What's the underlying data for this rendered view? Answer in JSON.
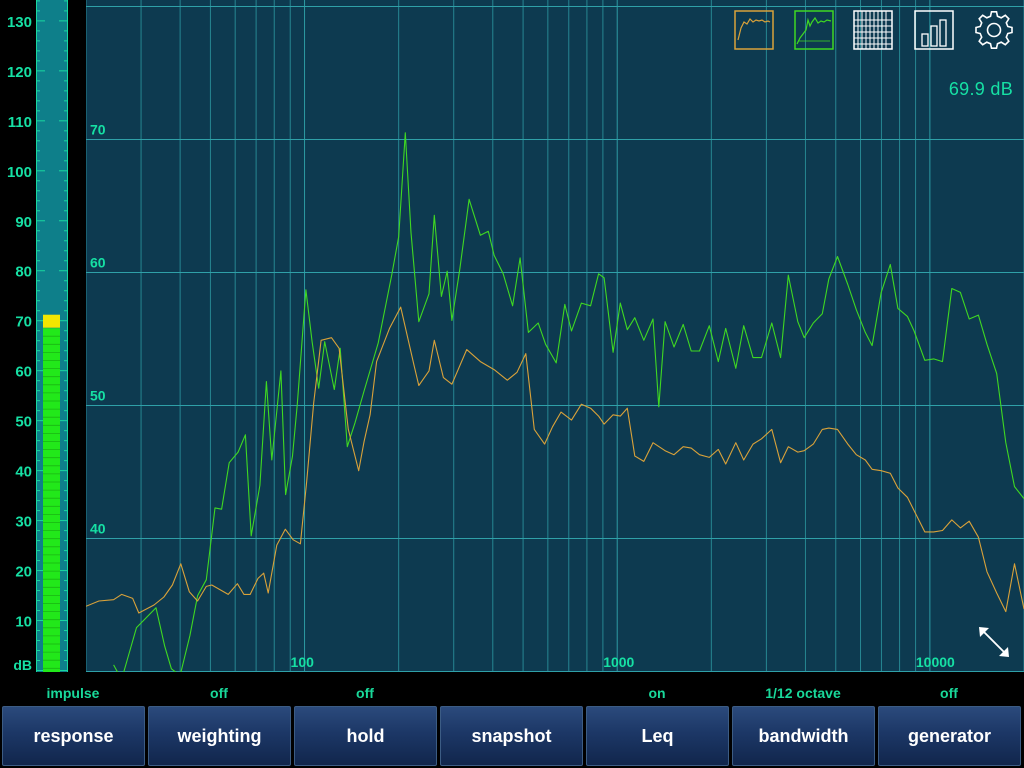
{
  "meter": {
    "ticks": [
      "130",
      "120",
      "110",
      "100",
      "90",
      "80",
      "70",
      "60",
      "50",
      "40",
      "30",
      "20",
      "10"
    ],
    "unit_label": "dB",
    "level_db": 68.5,
    "peak_db": 70,
    "range_db": [
      0,
      135
    ]
  },
  "readout": {
    "level_text": "69.9 dB"
  },
  "toolbar": {
    "icons": [
      "line-spectrum-icon",
      "filled-spectrum-icon",
      "spectrogram-icon",
      "bar-chart-icon",
      "settings-gear-icon"
    ]
  },
  "status": {
    "response": "impulse",
    "weighting": "off",
    "hold": "off",
    "snapshot": "",
    "leq": "on",
    "bandwidth": "1/12 octave",
    "generator": "off"
  },
  "buttons": {
    "response": "response",
    "weighting": "weighting",
    "hold": "hold",
    "snapshot": "snapshot",
    "leq": "Leq",
    "bandwidth": "bandwidth",
    "generator": "generator"
  },
  "colors": {
    "plot_bg": "#0d3a50",
    "grid": "#2fa0a8",
    "label": "#16e0a4",
    "green_trace": "#3fd822",
    "orange_trace": "#d9a23a",
    "meter_bar": "#22e81a",
    "meter_peak": "#f2e600"
  },
  "chart_data": {
    "type": "line",
    "x_scale": "log",
    "xlim": [
      20,
      20000
    ],
    "ylim": [
      30,
      80
    ],
    "x_tick_labels": [
      "100",
      "1000",
      "10000"
    ],
    "y_tick_labels": [
      "40",
      "50",
      "60",
      "70"
    ],
    "series": [
      {
        "color": "#3fd822",
        "points": [
          [
            24.5,
            30.5
          ],
          [
            26,
            29.4
          ],
          [
            29,
            33.3
          ],
          [
            33.5,
            34.8
          ],
          [
            35.7,
            31.9
          ],
          [
            37.5,
            30.2
          ],
          [
            40,
            29.7
          ],
          [
            43,
            32.7
          ],
          [
            45.5,
            35.7
          ],
          [
            48.5,
            36.9
          ],
          [
            51.7,
            42.3
          ],
          [
            54.3,
            42.2
          ],
          [
            57.4,
            45.7
          ],
          [
            61.3,
            46.5
          ],
          [
            64.7,
            47.8
          ],
          [
            67.5,
            40.2
          ],
          [
            72,
            44
          ],
          [
            75.5,
            51.8
          ],
          [
            78.6,
            45.9
          ],
          [
            84,
            52.6
          ],
          [
            87,
            43.3
          ],
          [
            91.5,
            46.2
          ],
          [
            94.8,
            50.1
          ],
          [
            101,
            58.7
          ],
          [
            105.7,
            54.8
          ],
          [
            111,
            51.3
          ],
          [
            116,
            54.8
          ],
          [
            124.5,
            51.2
          ],
          [
            130,
            54.3
          ],
          [
            137,
            46.9
          ],
          [
            145,
            48.7
          ],
          [
            155,
            51.1
          ],
          [
            172,
            54.7
          ],
          [
            190,
            59.8
          ],
          [
            200,
            62.7
          ],
          [
            210,
            70.5
          ],
          [
            219,
            63
          ],
          [
            232,
            56.3
          ],
          [
            250,
            58.4
          ],
          [
            260,
            64.3
          ],
          [
            274,
            58.2
          ],
          [
            286,
            60.1
          ],
          [
            296,
            56.4
          ],
          [
            314,
            60.3
          ],
          [
            336,
            65.5
          ],
          [
            365,
            62.8
          ],
          [
            387,
            63.1
          ],
          [
            404,
            61.3
          ],
          [
            432,
            59.9
          ],
          [
            463,
            57.5
          ],
          [
            489,
            61.1
          ],
          [
            520,
            55.5
          ],
          [
            559,
            56.2
          ],
          [
            590,
            54.6
          ],
          [
            638,
            53.2
          ],
          [
            680,
            57.6
          ],
          [
            714,
            55.6
          ],
          [
            768,
            57.7
          ],
          [
            822,
            57.5
          ],
          [
            872,
            59.9
          ],
          [
            908,
            59.6
          ],
          [
            970,
            54
          ],
          [
            1023,
            57.7
          ],
          [
            1077,
            55.7
          ],
          [
            1138,
            56.6
          ],
          [
            1216,
            54.9
          ],
          [
            1302,
            56.5
          ],
          [
            1358,
            49.9
          ],
          [
            1423,
            56.3
          ],
          [
            1519,
            54.4
          ],
          [
            1626,
            56.1
          ],
          [
            1725,
            54.1
          ],
          [
            1833,
            54.1
          ],
          [
            1971,
            56
          ],
          [
            2105,
            53.3
          ],
          [
            2223,
            55.8
          ],
          [
            2394,
            52.8
          ],
          [
            2539,
            56
          ],
          [
            2718,
            53.6
          ],
          [
            2894,
            53.6
          ],
          [
            3123,
            56.2
          ],
          [
            3331,
            53.6
          ],
          [
            3525,
            59.8
          ],
          [
            3780,
            56.3
          ],
          [
            3964,
            55.1
          ],
          [
            4237,
            56.2
          ],
          [
            4528,
            56.9
          ],
          [
            4752,
            59.5
          ],
          [
            5063,
            61.2
          ],
          [
            5463,
            59.1
          ],
          [
            5816,
            57.2
          ],
          [
            6217,
            55.5
          ],
          [
            6534,
            54.5
          ],
          [
            6987,
            58.5
          ],
          [
            7473,
            60.6
          ],
          [
            7903,
            57.3
          ],
          [
            8472,
            56.7
          ],
          [
            8902,
            55.6
          ],
          [
            9631,
            53.4
          ],
          [
            10287,
            53.5
          ],
          [
            10978,
            53.3
          ],
          [
            11748,
            58.8
          ],
          [
            12522,
            58.5
          ],
          [
            13363,
            56.5
          ],
          [
            14297,
            56.8
          ],
          [
            15234,
            54.6
          ],
          [
            16354,
            52.4
          ],
          [
            17485,
            47.2
          ],
          [
            18651,
            43.9
          ],
          [
            20000,
            43
          ]
        ]
      },
      {
        "color": "#d9a23a",
        "points": [
          [
            20,
            34.9
          ],
          [
            22,
            35.3
          ],
          [
            24.5,
            35.4
          ],
          [
            26,
            35.8
          ],
          [
            28.2,
            35.5
          ],
          [
            29.5,
            34.4
          ],
          [
            33,
            35
          ],
          [
            35.5,
            35.6
          ],
          [
            37.8,
            36.5
          ],
          [
            40.2,
            38.1
          ],
          [
            42.8,
            36
          ],
          [
            45.5,
            35.3
          ],
          [
            48.5,
            36.4
          ],
          [
            50.5,
            36.5
          ],
          [
            53.2,
            36.2
          ],
          [
            57,
            35.8
          ],
          [
            61,
            36.6
          ],
          [
            64,
            35.8
          ],
          [
            67,
            35.8
          ],
          [
            71,
            37
          ],
          [
            74,
            37.4
          ],
          [
            76.5,
            35.9
          ],
          [
            81.5,
            39.5
          ],
          [
            86.8,
            40.7
          ],
          [
            92,
            39.9
          ],
          [
            97,
            39.6
          ],
          [
            101.6,
            44.3
          ],
          [
            107,
            50.2
          ],
          [
            113,
            54.9
          ],
          [
            122,
            55.1
          ],
          [
            129,
            54.3
          ],
          [
            138,
            48.2
          ],
          [
            149,
            45.1
          ],
          [
            155,
            47.3
          ],
          [
            162,
            49.3
          ],
          [
            170,
            53.3
          ],
          [
            187,
            55.8
          ],
          [
            203,
            57.4
          ],
          [
            224,
            53
          ],
          [
            232,
            51.5
          ],
          [
            250,
            52.6
          ],
          [
            260,
            54.9
          ],
          [
            278,
            52.1
          ],
          [
            296,
            51.6
          ],
          [
            330,
            54.2
          ],
          [
            365,
            53.3
          ],
          [
            404,
            52.7
          ],
          [
            445,
            51.9
          ],
          [
            478,
            52.5
          ],
          [
            510,
            53.9
          ],
          [
            543,
            48.2
          ],
          [
            586,
            47.1
          ],
          [
            621,
            48.4
          ],
          [
            661,
            49.5
          ],
          [
            714,
            48.9
          ],
          [
            768,
            50.1
          ],
          [
            822,
            49.8
          ],
          [
            872,
            49.2
          ],
          [
            908,
            48.6
          ],
          [
            970,
            49.3
          ],
          [
            1023,
            49.2
          ],
          [
            1077,
            49.8
          ],
          [
            1138,
            46.2
          ],
          [
            1216,
            45.8
          ],
          [
            1302,
            47.2
          ],
          [
            1423,
            46.6
          ],
          [
            1519,
            46.3
          ],
          [
            1626,
            46.9
          ],
          [
            1725,
            46.8
          ],
          [
            1833,
            46.3
          ],
          [
            1971,
            46.1
          ],
          [
            2105,
            46.7
          ],
          [
            2223,
            45.6
          ],
          [
            2394,
            47.2
          ],
          [
            2539,
            45.9
          ],
          [
            2718,
            47.1
          ],
          [
            2894,
            47.5
          ],
          [
            3123,
            48.2
          ],
          [
            3331,
            45.7
          ],
          [
            3525,
            46.9
          ],
          [
            3780,
            46.5
          ],
          [
            3964,
            46.6
          ],
          [
            4237,
            47.1
          ],
          [
            4528,
            48.2
          ],
          [
            4752,
            48.3
          ],
          [
            5063,
            48.2
          ],
          [
            5463,
            47.1
          ],
          [
            5816,
            46.3
          ],
          [
            6217,
            45.9
          ],
          [
            6534,
            45.2
          ],
          [
            6987,
            45.1
          ],
          [
            7473,
            44.9
          ],
          [
            7903,
            43.8
          ],
          [
            8472,
            43.1
          ],
          [
            8902,
            42.1
          ],
          [
            9631,
            40.5
          ],
          [
            10287,
            40.5
          ],
          [
            10978,
            40.6
          ],
          [
            11748,
            41.4
          ],
          [
            12522,
            40.8
          ],
          [
            13363,
            41.3
          ],
          [
            14297,
            40.1
          ],
          [
            15234,
            37.5
          ],
          [
            16354,
            35.9
          ],
          [
            17485,
            34.5
          ],
          [
            18651,
            38.1
          ],
          [
            20000,
            34.7
          ]
        ]
      }
    ]
  }
}
